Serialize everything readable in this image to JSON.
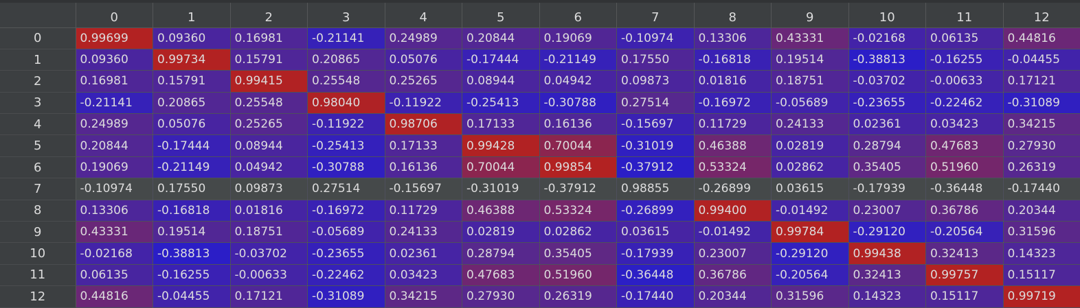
{
  "columns": [
    "0",
    "1",
    "2",
    "3",
    "4",
    "5",
    "6",
    "7",
    "8",
    "9",
    "10",
    "11",
    "12"
  ],
  "rows": [
    {
      "index": "0",
      "values": [
        "0.99699",
        "0.09360",
        "0.16981",
        "-0.21141",
        "0.24989",
        "0.20844",
        "0.19069",
        "-0.10974",
        "0.13306",
        "0.43331",
        "-0.02168",
        "0.06135",
        "0.44816"
      ]
    },
    {
      "index": "1",
      "values": [
        "0.09360",
        "0.99734",
        "0.15791",
        "0.20865",
        "0.05076",
        "-0.17444",
        "-0.21149",
        "0.17550",
        "-0.16818",
        "0.19514",
        "-0.38813",
        "-0.16255",
        "-0.04455"
      ]
    },
    {
      "index": "2",
      "values": [
        "0.16981",
        "0.15791",
        "0.99415",
        "0.25548",
        "0.25265",
        "0.08944",
        "0.04942",
        "0.09873",
        "0.01816",
        "0.18751",
        "-0.03702",
        "-0.00633",
        "0.17121"
      ]
    },
    {
      "index": "3",
      "values": [
        "-0.21141",
        "0.20865",
        "0.25548",
        "0.98040",
        "-0.11922",
        "-0.25413",
        "-0.30788",
        "0.27514",
        "-0.16972",
        "-0.05689",
        "-0.23655",
        "-0.22462",
        "-0.31089"
      ]
    },
    {
      "index": "4",
      "values": [
        "0.24989",
        "0.05076",
        "0.25265",
        "-0.11922",
        "0.98706",
        "0.17133",
        "0.16136",
        "-0.15697",
        "0.11729",
        "0.24133",
        "0.02361",
        "0.03423",
        "0.34215"
      ]
    },
    {
      "index": "5",
      "values": [
        "0.20844",
        "-0.17444",
        "0.08944",
        "-0.25413",
        "0.17133",
        "0.99428",
        "0.70044",
        "-0.31019",
        "0.46388",
        "0.02819",
        "0.28794",
        "0.47683",
        "0.27930"
      ]
    },
    {
      "index": "6",
      "values": [
        "0.19069",
        "-0.21149",
        "0.04942",
        "-0.30788",
        "0.16136",
        "0.70044",
        "0.99854",
        "-0.37912",
        "0.53324",
        "0.02862",
        "0.35405",
        "0.51960",
        "0.26319"
      ]
    },
    {
      "index": "7",
      "values": [
        "-0.10974",
        "0.17550",
        "0.09873",
        "0.27514",
        "-0.15697",
        "-0.31019",
        "-0.37912",
        "0.98855",
        "-0.26899",
        "0.03615",
        "-0.17939",
        "-0.36448",
        "-0.17440"
      ]
    },
    {
      "index": "8",
      "values": [
        "0.13306",
        "-0.16818",
        "0.01816",
        "-0.16972",
        "0.11729",
        "0.46388",
        "0.53324",
        "-0.26899",
        "0.99400",
        "-0.01492",
        "0.23007",
        "0.36786",
        "0.20344"
      ]
    },
    {
      "index": "9",
      "values": [
        "0.43331",
        "0.19514",
        "0.18751",
        "-0.05689",
        "0.24133",
        "0.02819",
        "0.02862",
        "0.03615",
        "-0.01492",
        "0.99784",
        "-0.29120",
        "-0.20564",
        "0.31596"
      ]
    },
    {
      "index": "10",
      "values": [
        "-0.02168",
        "-0.38813",
        "-0.03702",
        "-0.23655",
        "0.02361",
        "0.28794",
        "0.35405",
        "-0.17939",
        "0.23007",
        "-0.29120",
        "0.99438",
        "0.32413",
        "0.14323"
      ]
    },
    {
      "index": "11",
      "values": [
        "0.06135",
        "-0.16255",
        "-0.00633",
        "-0.22462",
        "0.03423",
        "0.47683",
        "0.51960",
        "-0.36448",
        "0.36786",
        "-0.20564",
        "0.32413",
        "0.99757",
        "0.15117"
      ]
    },
    {
      "index": "12",
      "values": [
        "0.44816",
        "-0.04455",
        "0.17121",
        "-0.31089",
        "0.34215",
        "0.27930",
        "0.26319",
        "-0.17440",
        "0.20344",
        "0.31596",
        "0.14323",
        "0.15117",
        "0.99719"
      ]
    }
  ],
  "highlight_row": "7",
  "colors": {
    "background": "#3c3f41",
    "low": "#2a20c8",
    "high": "#b02020",
    "highlight_row_bg": "#45494a"
  }
}
